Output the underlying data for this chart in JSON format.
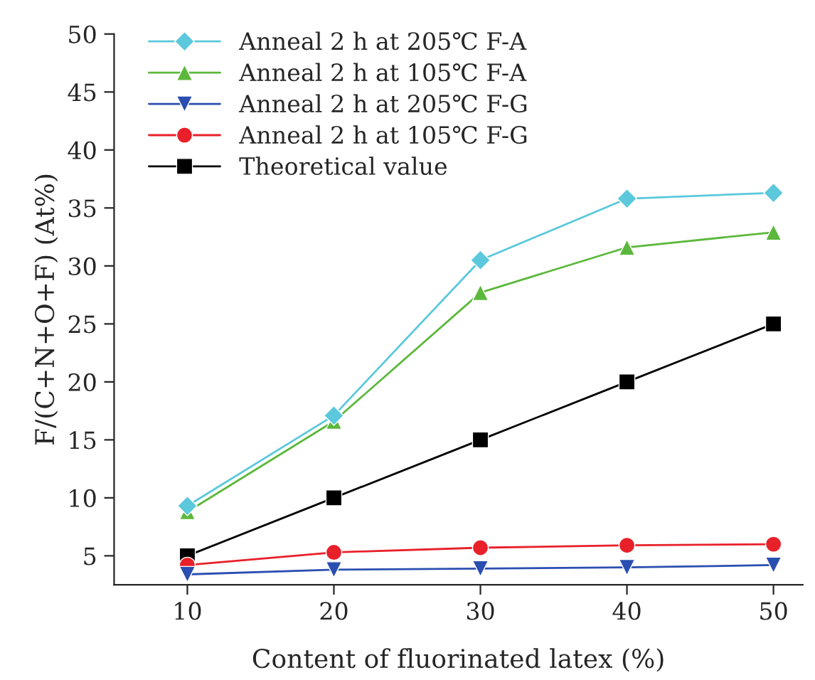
{
  "chart_data": {
    "type": "line",
    "xlabel": "Content of fluorinated latex (%)",
    "ylabel": "F/(C+N+O+F) (At%)",
    "x": [
      10,
      20,
      30,
      40,
      50
    ],
    "series": [
      {
        "name": "Anneal 2 h at 205℃ F-A",
        "color": "#5bc8dc",
        "marker": "diamond",
        "values": [
          9.3,
          17.1,
          30.5,
          35.8,
          36.3
        ]
      },
      {
        "name": "Anneal 2 h at 105℃ F-A",
        "color": "#5cb83c",
        "marker": "triangle",
        "values": [
          8.8,
          16.6,
          27.7,
          31.6,
          32.9
        ]
      },
      {
        "name": "Anneal 2 h at 205℃ F-G",
        "color": "#2b4fb0",
        "marker": "triangle_down",
        "values": [
          3.4,
          3.8,
          3.9,
          4.0,
          4.2
        ]
      },
      {
        "name": "Anneal 2 h at 105℃ F-G",
        "color": "#e8202a",
        "marker": "circle",
        "values": [
          4.2,
          5.3,
          5.7,
          5.9,
          6.0
        ]
      },
      {
        "name": "Theoretical value",
        "color": "#000000",
        "marker": "square",
        "values": [
          5,
          10,
          15,
          20,
          25
        ]
      }
    ],
    "xlim": [
      5,
      52
    ],
    "xticks": [
      10,
      20,
      30,
      40,
      50
    ],
    "ylim": [
      2.5,
      50
    ],
    "yticks": [
      5,
      10,
      15,
      20,
      25,
      30,
      35,
      40,
      45,
      50
    ],
    "grid": false,
    "legend": "top left",
    "line_style": "solid"
  }
}
